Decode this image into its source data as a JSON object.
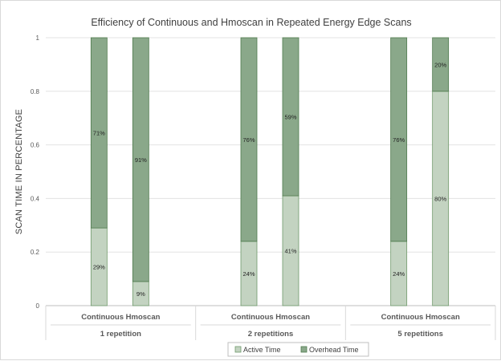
{
  "chart_data": {
    "type": "bar",
    "stacked": true,
    "title": "Efficiency of Continuous and Hmoscan in Repeated Energy Edge Scans",
    "ylabel": "SCAN TIME IN PERCENTAGE",
    "xlabel": "",
    "ylim": [
      0,
      1
    ],
    "yticks": [
      "0",
      "0.2",
      "0.4",
      "0.6",
      "0.8",
      "1"
    ],
    "grid": true,
    "legend_position": "bottom",
    "groups": [
      {
        "label": "1 repetition",
        "sublabel": "Continuous Hmoscan"
      },
      {
        "label": "2 repetitions",
        "sublabel": "Continuous Hmoscan"
      },
      {
        "label": "5 repetitions",
        "sublabel": "Continuous Hmoscan"
      }
    ],
    "bars": [
      {
        "group": 0,
        "active": 0.29,
        "overhead": 0.71
      },
      {
        "group": 0,
        "active": 0.09,
        "overhead": 0.91
      },
      {
        "group": 1,
        "active": 0.24,
        "overhead": 0.76
      },
      {
        "group": 1,
        "active": 0.41,
        "overhead": 0.59
      },
      {
        "group": 2,
        "active": 0.24,
        "overhead": 0.76
      },
      {
        "group": 2,
        "active": 0.8,
        "overhead": 0.2
      }
    ],
    "data_labels": [
      {
        "active": "29%",
        "overhead": "71%"
      },
      {
        "active": "9%",
        "overhead": "91%"
      },
      {
        "active": "24%",
        "overhead": "76%"
      },
      {
        "active": "41%",
        "overhead": "59%"
      },
      {
        "active": "24%",
        "overhead": "76%"
      },
      {
        "active": "80%",
        "overhead": "20%"
      }
    ],
    "series": [
      {
        "name": "Active Time",
        "color": "#c3d3c1",
        "border": "#6f9a6b"
      },
      {
        "name": "Overhead Time",
        "color": "#8aa88a",
        "border": "#4f7a4d"
      }
    ]
  }
}
